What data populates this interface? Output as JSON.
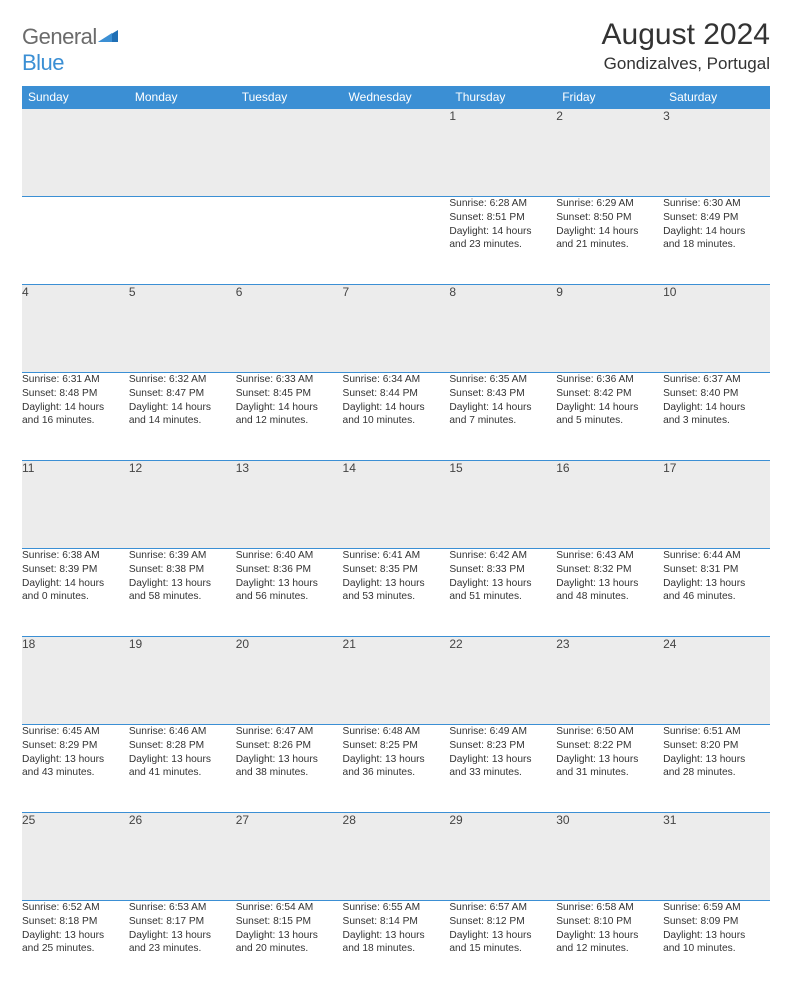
{
  "brand": {
    "general": "General",
    "blue": "Blue"
  },
  "title": "August 2024",
  "location": "Gondizalves, Portugal",
  "colors": {
    "header_bg": "#3b8fd4",
    "header_text": "#ffffff",
    "daynum_bg": "#ececec",
    "grid_line": "#3b8fd4",
    "body_text": "#333333",
    "logo_gray": "#6b6b6b",
    "logo_blue": "#3b8fd4"
  },
  "typography": {
    "title_fontsize": 30,
    "location_fontsize": 17,
    "header_fontsize": 12,
    "daynum_fontsize": 12,
    "cell_fontsize": 10.2
  },
  "day_headers": [
    "Sunday",
    "Monday",
    "Tuesday",
    "Wednesday",
    "Thursday",
    "Friday",
    "Saturday"
  ],
  "weeks": [
    {
      "days": [
        null,
        null,
        null,
        null,
        {
          "n": "1",
          "sr": "Sunrise: 6:28 AM",
          "ss": "Sunset: 8:51 PM",
          "dl1": "Daylight: 14 hours",
          "dl2": "and 23 minutes."
        },
        {
          "n": "2",
          "sr": "Sunrise: 6:29 AM",
          "ss": "Sunset: 8:50 PM",
          "dl1": "Daylight: 14 hours",
          "dl2": "and 21 minutes."
        },
        {
          "n": "3",
          "sr": "Sunrise: 6:30 AM",
          "ss": "Sunset: 8:49 PM",
          "dl1": "Daylight: 14 hours",
          "dl2": "and 18 minutes."
        }
      ]
    },
    {
      "days": [
        {
          "n": "4",
          "sr": "Sunrise: 6:31 AM",
          "ss": "Sunset: 8:48 PM",
          "dl1": "Daylight: 14 hours",
          "dl2": "and 16 minutes."
        },
        {
          "n": "5",
          "sr": "Sunrise: 6:32 AM",
          "ss": "Sunset: 8:47 PM",
          "dl1": "Daylight: 14 hours",
          "dl2": "and 14 minutes."
        },
        {
          "n": "6",
          "sr": "Sunrise: 6:33 AM",
          "ss": "Sunset: 8:45 PM",
          "dl1": "Daylight: 14 hours",
          "dl2": "and 12 minutes."
        },
        {
          "n": "7",
          "sr": "Sunrise: 6:34 AM",
          "ss": "Sunset: 8:44 PM",
          "dl1": "Daylight: 14 hours",
          "dl2": "and 10 minutes."
        },
        {
          "n": "8",
          "sr": "Sunrise: 6:35 AM",
          "ss": "Sunset: 8:43 PM",
          "dl1": "Daylight: 14 hours",
          "dl2": "and 7 minutes."
        },
        {
          "n": "9",
          "sr": "Sunrise: 6:36 AM",
          "ss": "Sunset: 8:42 PM",
          "dl1": "Daylight: 14 hours",
          "dl2": "and 5 minutes."
        },
        {
          "n": "10",
          "sr": "Sunrise: 6:37 AM",
          "ss": "Sunset: 8:40 PM",
          "dl1": "Daylight: 14 hours",
          "dl2": "and 3 minutes."
        }
      ]
    },
    {
      "days": [
        {
          "n": "11",
          "sr": "Sunrise: 6:38 AM",
          "ss": "Sunset: 8:39 PM",
          "dl1": "Daylight: 14 hours",
          "dl2": "and 0 minutes."
        },
        {
          "n": "12",
          "sr": "Sunrise: 6:39 AM",
          "ss": "Sunset: 8:38 PM",
          "dl1": "Daylight: 13 hours",
          "dl2": "and 58 minutes."
        },
        {
          "n": "13",
          "sr": "Sunrise: 6:40 AM",
          "ss": "Sunset: 8:36 PM",
          "dl1": "Daylight: 13 hours",
          "dl2": "and 56 minutes."
        },
        {
          "n": "14",
          "sr": "Sunrise: 6:41 AM",
          "ss": "Sunset: 8:35 PM",
          "dl1": "Daylight: 13 hours",
          "dl2": "and 53 minutes."
        },
        {
          "n": "15",
          "sr": "Sunrise: 6:42 AM",
          "ss": "Sunset: 8:33 PM",
          "dl1": "Daylight: 13 hours",
          "dl2": "and 51 minutes."
        },
        {
          "n": "16",
          "sr": "Sunrise: 6:43 AM",
          "ss": "Sunset: 8:32 PM",
          "dl1": "Daylight: 13 hours",
          "dl2": "and 48 minutes."
        },
        {
          "n": "17",
          "sr": "Sunrise: 6:44 AM",
          "ss": "Sunset: 8:31 PM",
          "dl1": "Daylight: 13 hours",
          "dl2": "and 46 minutes."
        }
      ]
    },
    {
      "days": [
        {
          "n": "18",
          "sr": "Sunrise: 6:45 AM",
          "ss": "Sunset: 8:29 PM",
          "dl1": "Daylight: 13 hours",
          "dl2": "and 43 minutes."
        },
        {
          "n": "19",
          "sr": "Sunrise: 6:46 AM",
          "ss": "Sunset: 8:28 PM",
          "dl1": "Daylight: 13 hours",
          "dl2": "and 41 minutes."
        },
        {
          "n": "20",
          "sr": "Sunrise: 6:47 AM",
          "ss": "Sunset: 8:26 PM",
          "dl1": "Daylight: 13 hours",
          "dl2": "and 38 minutes."
        },
        {
          "n": "21",
          "sr": "Sunrise: 6:48 AM",
          "ss": "Sunset: 8:25 PM",
          "dl1": "Daylight: 13 hours",
          "dl2": "and 36 minutes."
        },
        {
          "n": "22",
          "sr": "Sunrise: 6:49 AM",
          "ss": "Sunset: 8:23 PM",
          "dl1": "Daylight: 13 hours",
          "dl2": "and 33 minutes."
        },
        {
          "n": "23",
          "sr": "Sunrise: 6:50 AM",
          "ss": "Sunset: 8:22 PM",
          "dl1": "Daylight: 13 hours",
          "dl2": "and 31 minutes."
        },
        {
          "n": "24",
          "sr": "Sunrise: 6:51 AM",
          "ss": "Sunset: 8:20 PM",
          "dl1": "Daylight: 13 hours",
          "dl2": "and 28 minutes."
        }
      ]
    },
    {
      "days": [
        {
          "n": "25",
          "sr": "Sunrise: 6:52 AM",
          "ss": "Sunset: 8:18 PM",
          "dl1": "Daylight: 13 hours",
          "dl2": "and 25 minutes."
        },
        {
          "n": "26",
          "sr": "Sunrise: 6:53 AM",
          "ss": "Sunset: 8:17 PM",
          "dl1": "Daylight: 13 hours",
          "dl2": "and 23 minutes."
        },
        {
          "n": "27",
          "sr": "Sunrise: 6:54 AM",
          "ss": "Sunset: 8:15 PM",
          "dl1": "Daylight: 13 hours",
          "dl2": "and 20 minutes."
        },
        {
          "n": "28",
          "sr": "Sunrise: 6:55 AM",
          "ss": "Sunset: 8:14 PM",
          "dl1": "Daylight: 13 hours",
          "dl2": "and 18 minutes."
        },
        {
          "n": "29",
          "sr": "Sunrise: 6:57 AM",
          "ss": "Sunset: 8:12 PM",
          "dl1": "Daylight: 13 hours",
          "dl2": "and 15 minutes."
        },
        {
          "n": "30",
          "sr": "Sunrise: 6:58 AM",
          "ss": "Sunset: 8:10 PM",
          "dl1": "Daylight: 13 hours",
          "dl2": "and 12 minutes."
        },
        {
          "n": "31",
          "sr": "Sunrise: 6:59 AM",
          "ss": "Sunset: 8:09 PM",
          "dl1": "Daylight: 13 hours",
          "dl2": "and 10 minutes."
        }
      ]
    }
  ]
}
